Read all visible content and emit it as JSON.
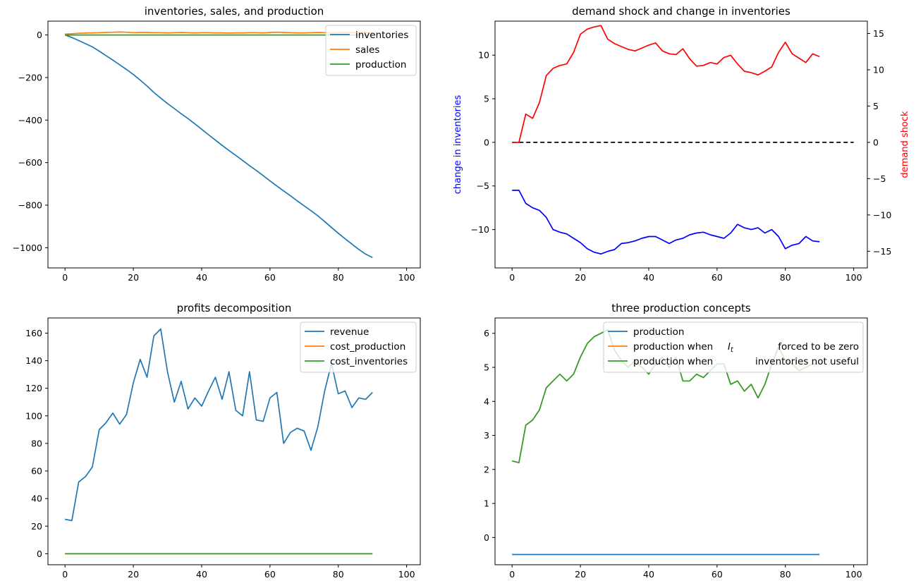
{
  "chart_data": [
    {
      "id": "inv",
      "type": "line",
      "title": "inventories, sales, and production",
      "xlim": [
        -5,
        104
      ],
      "ylim": [
        -1095,
        65
      ],
      "xticks": [
        0,
        20,
        40,
        60,
        80,
        100
      ],
      "yticks": [
        0,
        -200,
        -400,
        -600,
        -800,
        -1000
      ],
      "legend": "top-right",
      "x_step": 2,
      "series": [
        {
          "name": "inventories",
          "color": "#1f77b4",
          "values": [
            0,
            -12,
            -26,
            -41,
            -56,
            -76,
            -97,
            -118,
            -140,
            -162,
            -186,
            -212,
            -240,
            -270,
            -297,
            -322,
            -346,
            -370,
            -393,
            -418,
            -443,
            -469,
            -494,
            -519,
            -543,
            -566,
            -590,
            -614,
            -637,
            -661,
            -686,
            -710,
            -733,
            -756,
            -780,
            -803,
            -826,
            -850,
            -877,
            -905,
            -932,
            -958,
            -983,
            -1008,
            -1030,
            -1046
          ]
        },
        {
          "name": "sales",
          "color": "#ff7f0e",
          "values": [
            4,
            6,
            8,
            9,
            10,
            11,
            12,
            13,
            14,
            13,
            11,
            12,
            12,
            11,
            11,
            10,
            11,
            12,
            11,
            10,
            11,
            11,
            10,
            10,
            9,
            10,
            10,
            11,
            11,
            10,
            12,
            13,
            12,
            11,
            10,
            10,
            11,
            12,
            11,
            10,
            11,
            12,
            11,
            11,
            11,
            11
          ]
        },
        {
          "name": "production",
          "color": "#2ca02c",
          "values": [
            0,
            0,
            0,
            0,
            0,
            0,
            0,
            0,
            0,
            0,
            0,
            0,
            0,
            0,
            0,
            0,
            0,
            0,
            0,
            0,
            0,
            0,
            0,
            0,
            0,
            0,
            0,
            0,
            0,
            0,
            0,
            0,
            0,
            0,
            0,
            0,
            0,
            0,
            0,
            0,
            0,
            0,
            0,
            0,
            0,
            0
          ]
        }
      ]
    },
    {
      "id": "shock",
      "type": "line",
      "title": "demand shock and change in inventories",
      "xlim": [
        -5,
        104
      ],
      "ylim": [
        -14.4,
        13.9
      ],
      "y2lim": [
        -17.3,
        16.7
      ],
      "xticks": [
        0,
        20,
        40,
        60,
        80,
        100
      ],
      "yticks": [
        10,
        5,
        0,
        -5,
        -10
      ],
      "y2ticks": [
        15,
        10,
        5,
        0,
        -5,
        -10,
        -15
      ],
      "ylabel": "change in inventories",
      "y2label": "demand shock",
      "ylabel_color": "#0000ff",
      "y2label_color": "#ff0000",
      "x_step": 2,
      "series": [
        {
          "name": "change in inventories",
          "axis": "left",
          "color": "#0000ff",
          "values": [
            -5.5,
            -5.5,
            -7.0,
            -7.5,
            -7.8,
            -8.6,
            -10.0,
            -10.3,
            -10.5,
            -11.0,
            -11.5,
            -12.2,
            -12.6,
            -12.8,
            -12.5,
            -12.3,
            -11.6,
            -11.5,
            -11.3,
            -11.0,
            -10.8,
            -10.8,
            -11.2,
            -11.6,
            -11.2,
            -11.0,
            -10.6,
            -10.4,
            -10.3,
            -10.6,
            -10.8,
            -11.0,
            -10.4,
            -9.4,
            -9.8,
            -10.0,
            -9.8,
            -10.4,
            -10.0,
            -10.8,
            -12.2,
            -11.8,
            -11.6,
            -10.8,
            -11.3,
            -11.4
          ]
        },
        {
          "name": "demand shock",
          "axis": "right",
          "color": "#ff0000",
          "values": [
            0.0,
            0.0,
            3.9,
            3.3,
            5.5,
            9.2,
            10.2,
            10.6,
            10.8,
            12.4,
            14.9,
            15.6,
            15.9,
            16.1,
            14.2,
            13.6,
            13.2,
            12.8,
            12.6,
            13.0,
            13.4,
            13.7,
            12.6,
            12.2,
            12.1,
            12.9,
            11.5,
            10.5,
            10.6,
            11.0,
            10.8,
            11.7,
            12.0,
            10.8,
            9.8,
            9.6,
            9.3,
            9.8,
            10.4,
            12.4,
            13.8,
            12.2,
            11.6,
            11.0,
            12.2,
            11.8
          ]
        }
      ],
      "reference_line": 0
    },
    {
      "id": "profit",
      "type": "line",
      "title": "profits decomposition",
      "xlim": [
        -5,
        104
      ],
      "ylim": [
        -8,
        171
      ],
      "xticks": [
        0,
        20,
        40,
        60,
        80,
        100
      ],
      "yticks": [
        160,
        140,
        120,
        100,
        80,
        60,
        40,
        20,
        0
      ],
      "legend": "top-right",
      "x_step": 2,
      "series": [
        {
          "name": "revenue",
          "color": "#1f77b4",
          "values": [
            25,
            24,
            52,
            56,
            63,
            90,
            95,
            102,
            94,
            101,
            124,
            141,
            128,
            158,
            163,
            132,
            110,
            125,
            105,
            113,
            107,
            118,
            128,
            112,
            132,
            104,
            100,
            132,
            97,
            96,
            113,
            117,
            80,
            88,
            91,
            89,
            75,
            92,
            118,
            138,
            116,
            118,
            106,
            113,
            112,
            117
          ]
        },
        {
          "name": "cost_production",
          "color": "#ff7f0e",
          "values": [
            0,
            0,
            0,
            0,
            0,
            0,
            0,
            0,
            0,
            0,
            0,
            0,
            0,
            0,
            0,
            0,
            0,
            0,
            0,
            0,
            0,
            0,
            0,
            0,
            0,
            0,
            0,
            0,
            0,
            0,
            0,
            0,
            0,
            0,
            0,
            0,
            0,
            0,
            0,
            0,
            0,
            0,
            0,
            0,
            0,
            0
          ]
        },
        {
          "name": "cost_inventories",
          "color": "#2ca02c",
          "values": [
            0,
            0,
            0,
            0,
            0,
            0,
            0,
            0,
            0,
            0,
            0,
            0,
            0,
            0,
            0,
            0,
            0,
            0,
            0,
            0,
            0,
            0,
            0,
            0,
            0,
            0,
            0,
            0,
            0,
            0,
            0,
            0,
            0,
            0,
            0,
            0,
            0,
            0,
            0,
            0,
            0,
            0,
            0,
            0,
            0,
            0
          ]
        }
      ]
    },
    {
      "id": "prod",
      "type": "line",
      "title": "three production concepts",
      "xlim": [
        -5,
        104
      ],
      "ylim": [
        -0.8,
        6.45
      ],
      "xticks": [
        0,
        20,
        40,
        60,
        80,
        100
      ],
      "yticks": [
        6,
        5,
        4,
        3,
        2,
        1,
        0
      ],
      "legend": "top-right",
      "legend_mathtext": "I_t",
      "x_step": 2,
      "series": [
        {
          "name": "production",
          "color": "#1f77b4",
          "values": [
            -0.5,
            -0.5,
            -0.5,
            -0.5,
            -0.5,
            -0.5,
            -0.5,
            -0.5,
            -0.5,
            -0.5,
            -0.5,
            -0.5,
            -0.5,
            -0.5,
            -0.5,
            -0.5,
            -0.5,
            -0.5,
            -0.5,
            -0.5,
            -0.5,
            -0.5,
            -0.5,
            -0.5,
            -0.5,
            -0.5,
            -0.5,
            -0.5,
            -0.5,
            -0.5,
            -0.5,
            -0.5,
            -0.5,
            -0.5,
            -0.5,
            -0.5,
            -0.5,
            -0.5,
            -0.5,
            -0.5,
            -0.5,
            -0.5,
            -0.5,
            -0.5,
            -0.5,
            -0.5
          ]
        },
        {
          "name": "production when",
          "name_suffix": "forced to be zero",
          "color": "#ff7f0e",
          "values": [
            2.25,
            2.2,
            3.3,
            3.45,
            3.75,
            4.4,
            4.6,
            4.8,
            4.6,
            4.8,
            5.3,
            5.7,
            5.9,
            6.0,
            6.1,
            5.5,
            5.2,
            5.0,
            5.2,
            5.0,
            4.8,
            5.1,
            5.3,
            5.0,
            5.3,
            4.6,
            4.6,
            4.8,
            4.7,
            4.9,
            5.1,
            5.1,
            4.5,
            4.6,
            4.3,
            4.5,
            4.1,
            4.5,
            5.1,
            5.6,
            5.2,
            5.1,
            4.9,
            5.0,
            5.1,
            5.1
          ]
        },
        {
          "name": "production when",
          "name_suffix": "inventories not useful",
          "color": "#2ca02c",
          "values": [
            2.25,
            2.2,
            3.3,
            3.45,
            3.75,
            4.4,
            4.6,
            4.8,
            4.6,
            4.8,
            5.3,
            5.7,
            5.9,
            6.0,
            6.1,
            5.5,
            5.2,
            5.0,
            5.2,
            5.0,
            4.8,
            5.1,
            5.3,
            5.0,
            5.3,
            4.6,
            4.6,
            4.8,
            4.7,
            4.9,
            5.1,
            5.1,
            4.5,
            4.6,
            4.3,
            4.5,
            4.1,
            4.5,
            5.1,
            5.6,
            5.2,
            5.1,
            4.9,
            5.0,
            5.1,
            5.1
          ]
        }
      ]
    }
  ]
}
